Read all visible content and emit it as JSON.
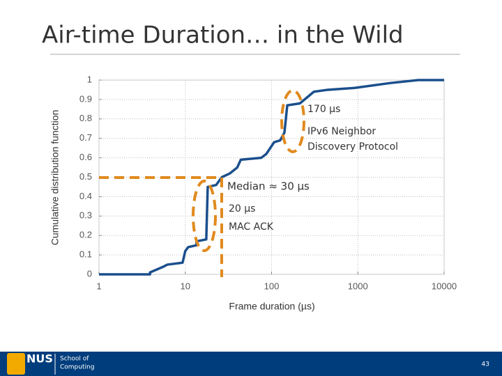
{
  "slide": {
    "title": "Air-time Duration… in the Wild"
  },
  "chart_data": {
    "type": "line",
    "x_label": "Frame duration (µs)",
    "y_label": "Cumulative distribution function",
    "x": [
      1,
      3.9,
      3.9,
      5.6,
      6.2,
      9.3,
      10,
      10.8,
      13.5,
      13.5,
      17.5,
      18.2,
      22.8,
      26.5,
      33,
      40,
      44,
      76,
      87,
      107,
      126,
      141,
      152,
      213,
      309,
      447,
      933,
      2400,
      5000,
      10000
    ],
    "values": [
      0,
      0,
      0.01,
      0.04,
      0.05,
      0.06,
      0.12,
      0.14,
      0.15,
      0.17,
      0.18,
      0.45,
      0.46,
      0.5,
      0.52,
      0.55,
      0.59,
      0.6,
      0.62,
      0.68,
      0.69,
      0.73,
      0.87,
      0.88,
      0.94,
      0.95,
      0.96,
      0.985,
      1,
      1
    ],
    "color": "#1b4f8c",
    "xscale": "log",
    "grid": true,
    "xlim": [
      1,
      10000
    ],
    "xticks": [
      1,
      10,
      100,
      1000,
      10000
    ],
    "ylim": [
      0,
      1
    ],
    "yticks": [
      0,
      0.1,
      0.2,
      0.3,
      0.4,
      0.5,
      0.6,
      0.7,
      0.8,
      0.9,
      1
    ],
    "annotations": [
      "170 µs",
      "IPv6 Neighbor",
      "Discovery Protocol",
      "Median ≈ 30 µs",
      "20 µs",
      "MAC ACK"
    ]
  },
  "footer": {
    "logo": "NUS",
    "unit": [
      "School of",
      "Computing"
    ],
    "page": "43"
  }
}
